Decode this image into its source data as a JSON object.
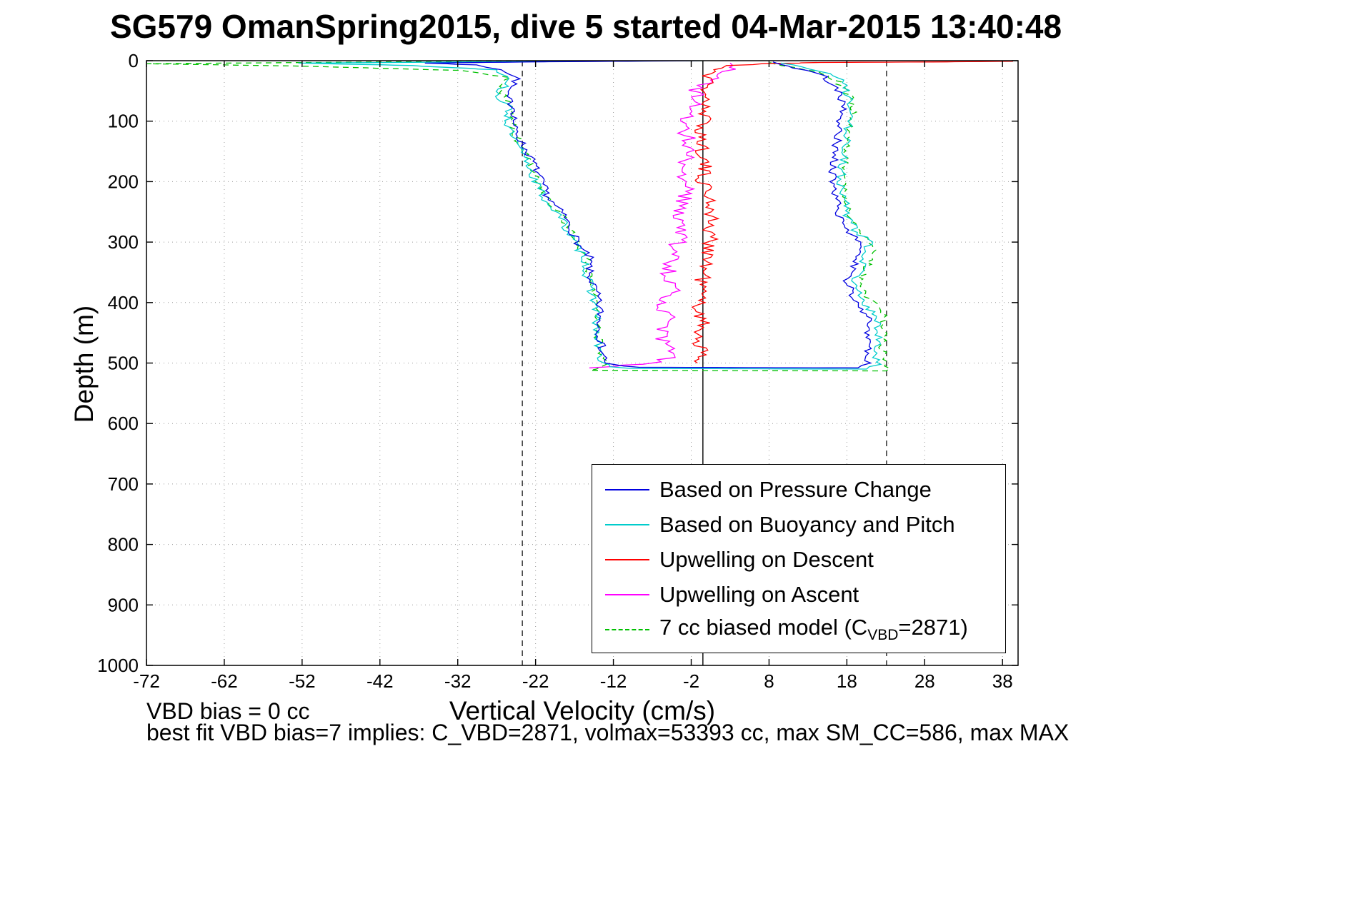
{
  "title": "SG579 OmanSpring2015, dive 5 started 04-Mar-2015 13:40:48",
  "footer": {
    "vbd_bias": "VBD bias = 0 cc",
    "best_fit": "best fit VBD bias=7 implies: C_VBD=2871, volmax=53393 cc, max SM_CC=586, max MAX"
  },
  "chart_data": {
    "type": "line",
    "title": "SG579 OmanSpring2015, dive 5 started 04-Mar-2015 13:40:48",
    "xlabel": "Vertical Velocity (cm/s)",
    "ylabel": "Depth (m)",
    "xlim": [
      -72,
      40
    ],
    "ylim": [
      0,
      1000
    ],
    "y_axis_reversed": true,
    "xticks": [
      -72,
      -62,
      -52,
      -42,
      -32,
      -22,
      -12,
      -2,
      8,
      18,
      28,
      38
    ],
    "yticks": [
      0,
      100,
      200,
      300,
      400,
      500,
      600,
      700,
      800,
      900,
      1000
    ],
    "grid": "dotted",
    "ref_lines": {
      "solid": -0.5,
      "dashed": [
        -23.7,
        23.1
      ]
    },
    "legend": {
      "position": "inside lower right",
      "entries": [
        "Based on Pressure Change",
        "Based on Buoyancy and Pitch",
        "Upwelling on Descent",
        "Upwelling on Ascent"
      ],
      "model_entry": {
        "prefix": "7 cc biased model (C",
        "sub": "VBD",
        "suffix": "=2871)"
      }
    },
    "series": [
      {
        "id": "pressure",
        "name": "Based on Pressure Change",
        "color": "#0000e0",
        "dash": false,
        "noise": 0.55,
        "seed": 7,
        "points": [
          [
            0,
            -0.3
          ],
          [
            2,
            -22
          ],
          [
            4,
            -36
          ],
          [
            7,
            -30
          ],
          [
            15,
            -26
          ],
          [
            30,
            -24.3
          ],
          [
            55,
            -26
          ],
          [
            80,
            -24.6
          ],
          [
            110,
            -24.8
          ],
          [
            140,
            -23.6
          ],
          [
            170,
            -22.2
          ],
          [
            200,
            -21.3
          ],
          [
            230,
            -20.2
          ],
          [
            255,
            -18.4
          ],
          [
            280,
            -17.4
          ],
          [
            310,
            -16.2
          ],
          [
            325,
            -15.1
          ],
          [
            355,
            -15.1
          ],
          [
            385,
            -14.2
          ],
          [
            415,
            -13.7
          ],
          [
            445,
            -13.8
          ],
          [
            475,
            -13.5
          ],
          [
            500,
            -12.9
          ],
          [
            505,
            -11
          ],
          [
            507,
            -9
          ],
          [
            508,
            19.5
          ],
          [
            500,
            20.6
          ],
          [
            480,
            20.4
          ],
          [
            465,
            21.2
          ],
          [
            450,
            20.2
          ],
          [
            430,
            20.9
          ],
          [
            415,
            20.1
          ],
          [
            400,
            19.1
          ],
          [
            380,
            18.5
          ],
          [
            360,
            17.9
          ],
          [
            340,
            18.8
          ],
          [
            320,
            19.4
          ],
          [
            300,
            19.7
          ],
          [
            280,
            18
          ],
          [
            260,
            17
          ],
          [
            240,
            16.9
          ],
          [
            220,
            16.3
          ],
          [
            200,
            16
          ],
          [
            180,
            16.3
          ],
          [
            160,
            16.4
          ],
          [
            140,
            16.6
          ],
          [
            120,
            17
          ],
          [
            100,
            17.1
          ],
          [
            80,
            17.6
          ],
          [
            60,
            17.3
          ],
          [
            45,
            16.5
          ],
          [
            30,
            15.4
          ],
          [
            20,
            14.2
          ],
          [
            12,
            11.5
          ],
          [
            6,
            9.5
          ],
          [
            2,
            8.5
          ]
        ]
      },
      {
        "id": "buoyancy",
        "name": "Based on Buoyancy and Pitch",
        "color": "#00cccc",
        "dash": false,
        "noise": 0.6,
        "seed": 13,
        "points": [
          [
            0,
            -0.5
          ],
          [
            2,
            -30
          ],
          [
            4,
            -52
          ],
          [
            8,
            -38
          ],
          [
            15,
            -27
          ],
          [
            30,
            -25
          ],
          [
            55,
            -27
          ],
          [
            80,
            -25.4
          ],
          [
            110,
            -25.6
          ],
          [
            140,
            -24.4
          ],
          [
            170,
            -23
          ],
          [
            200,
            -22
          ],
          [
            230,
            -20.8
          ],
          [
            255,
            -19
          ],
          [
            280,
            -17.9
          ],
          [
            310,
            -16.6
          ],
          [
            325,
            -15.6
          ],
          [
            355,
            -15.5
          ],
          [
            385,
            -14.7
          ],
          [
            415,
            -14.2
          ],
          [
            445,
            -14.3
          ],
          [
            475,
            -14
          ],
          [
            500,
            -13.4
          ],
          [
            506,
            -12
          ],
          [
            509,
            -10
          ],
          [
            510,
            21
          ],
          [
            502,
            21.8
          ],
          [
            480,
            21.6
          ],
          [
            465,
            22.4
          ],
          [
            450,
            21.4
          ],
          [
            430,
            22.1
          ],
          [
            415,
            21.3
          ],
          [
            400,
            20.3
          ],
          [
            380,
            19.6
          ],
          [
            360,
            19
          ],
          [
            340,
            19.9
          ],
          [
            320,
            20.5
          ],
          [
            300,
            20.8
          ],
          [
            280,
            19.1
          ],
          [
            260,
            18.1
          ],
          [
            240,
            18
          ],
          [
            220,
            17.4
          ],
          [
            200,
            17.1
          ],
          [
            180,
            17.4
          ],
          [
            160,
            17.5
          ],
          [
            140,
            17.7
          ],
          [
            120,
            18.1
          ],
          [
            100,
            18.2
          ],
          [
            80,
            18.7
          ],
          [
            60,
            18.4
          ],
          [
            45,
            17.6
          ],
          [
            32,
            17.6
          ],
          [
            18,
            15
          ],
          [
            10,
            12
          ],
          [
            4,
            9.5
          ]
        ]
      },
      {
        "id": "upwell-descent",
        "name": "Upwelling on Descent",
        "color": "#ff0000",
        "dash": false,
        "noise": 1.1,
        "seed": 21,
        "points": [
          [
            1,
            39.5
          ],
          [
            2,
            30
          ],
          [
            3,
            15
          ],
          [
            5,
            7
          ],
          [
            8,
            3.5
          ],
          [
            12,
            2
          ],
          [
            18,
            1
          ],
          [
            25,
            0.3
          ],
          [
            40,
            -0.2
          ],
          [
            60,
            0.2
          ],
          [
            80,
            -0.8
          ],
          [
            100,
            -0.3
          ],
          [
            130,
            -0.8
          ],
          [
            160,
            -0.2
          ],
          [
            190,
            -0.6
          ],
          [
            220,
            0.2
          ],
          [
            250,
            0.8
          ],
          [
            280,
            0.2
          ],
          [
            310,
            0.6
          ],
          [
            340,
            -0.2
          ],
          [
            370,
            -0.6
          ],
          [
            400,
            -1
          ],
          [
            430,
            -0.6
          ],
          [
            460,
            -0.8
          ],
          [
            490,
            -1
          ],
          [
            500,
            -1.2
          ]
        ]
      },
      {
        "id": "upwell-ascent",
        "name": "Upwelling on Ascent",
        "color": "#ff00ff",
        "dash": false,
        "noise": 1.2,
        "seed": 31,
        "points": [
          [
            508,
            -15.5
          ],
          [
            505,
            -12
          ],
          [
            502,
            -8
          ],
          [
            498,
            -5.5
          ],
          [
            480,
            -4.5
          ],
          [
            460,
            -5.5
          ],
          [
            440,
            -6
          ],
          [
            420,
            -5
          ],
          [
            400,
            -5.8
          ],
          [
            380,
            -4.6
          ],
          [
            360,
            -5.2
          ],
          [
            340,
            -4.4
          ],
          [
            320,
            -4.8
          ],
          [
            300,
            -3.8
          ],
          [
            280,
            -3.4
          ],
          [
            260,
            -4.2
          ],
          [
            240,
            -3.2
          ],
          [
            220,
            -2.8
          ],
          [
            200,
            -2.6
          ],
          [
            180,
            -3.2
          ],
          [
            160,
            -2.6
          ],
          [
            140,
            -2.2
          ],
          [
            120,
            -2.6
          ],
          [
            100,
            -2.4
          ],
          [
            80,
            -2
          ],
          [
            60,
            -1.6
          ],
          [
            45,
            -1
          ],
          [
            32,
            0.5
          ],
          [
            22,
            2
          ],
          [
            14,
            3.5
          ],
          [
            8,
            4.5
          ],
          [
            4,
            3
          ]
        ]
      },
      {
        "id": "model",
        "name": "7 cc biased model (C_VBD=2871)",
        "color": "#00c000",
        "dash": true,
        "noise": 0.5,
        "seed": 47,
        "points": [
          [
            0,
            -0.8
          ],
          [
            2,
            -40
          ],
          [
            5,
            -72
          ],
          [
            9,
            -52
          ],
          [
            16,
            -32
          ],
          [
            28,
            -25.5
          ],
          [
            50,
            -26.5
          ],
          [
            80,
            -25
          ],
          [
            110,
            -25
          ],
          [
            140,
            -24
          ],
          [
            170,
            -22.6
          ],
          [
            200,
            -21.6
          ],
          [
            230,
            -20.4
          ],
          [
            255,
            -18.7
          ],
          [
            280,
            -17.6
          ],
          [
            310,
            -16.4
          ],
          [
            330,
            -15.3
          ],
          [
            360,
            -15.2
          ],
          [
            390,
            -14.4
          ],
          [
            420,
            -13.9
          ],
          [
            450,
            -14
          ],
          [
            480,
            -13.7
          ],
          [
            505,
            -13
          ],
          [
            510,
            -14
          ],
          [
            512,
            -15
          ],
          [
            513,
            23
          ],
          [
            505,
            23.2
          ],
          [
            490,
            23
          ],
          [
            470,
            22.4
          ],
          [
            455,
            23.2
          ],
          [
            440,
            22.2
          ],
          [
            425,
            23
          ],
          [
            410,
            22.6
          ],
          [
            398,
            21
          ],
          [
            385,
            20.2
          ],
          [
            365,
            19.6
          ],
          [
            345,
            20.4
          ],
          [
            325,
            21.2
          ],
          [
            305,
            21.4
          ],
          [
            285,
            19.6
          ],
          [
            265,
            18.6
          ],
          [
            245,
            18.4
          ],
          [
            225,
            17.8
          ],
          [
            205,
            17.4
          ],
          [
            185,
            17.7
          ],
          [
            165,
            17.8
          ],
          [
            145,
            18
          ],
          [
            125,
            18.4
          ],
          [
            105,
            18.4
          ],
          [
            85,
            18.9
          ],
          [
            65,
            18.6
          ],
          [
            50,
            17.8
          ],
          [
            35,
            16.8
          ],
          [
            25,
            15.8
          ],
          [
            15,
            13
          ],
          [
            8,
            10
          ],
          [
            3,
            8
          ]
        ]
      }
    ]
  }
}
